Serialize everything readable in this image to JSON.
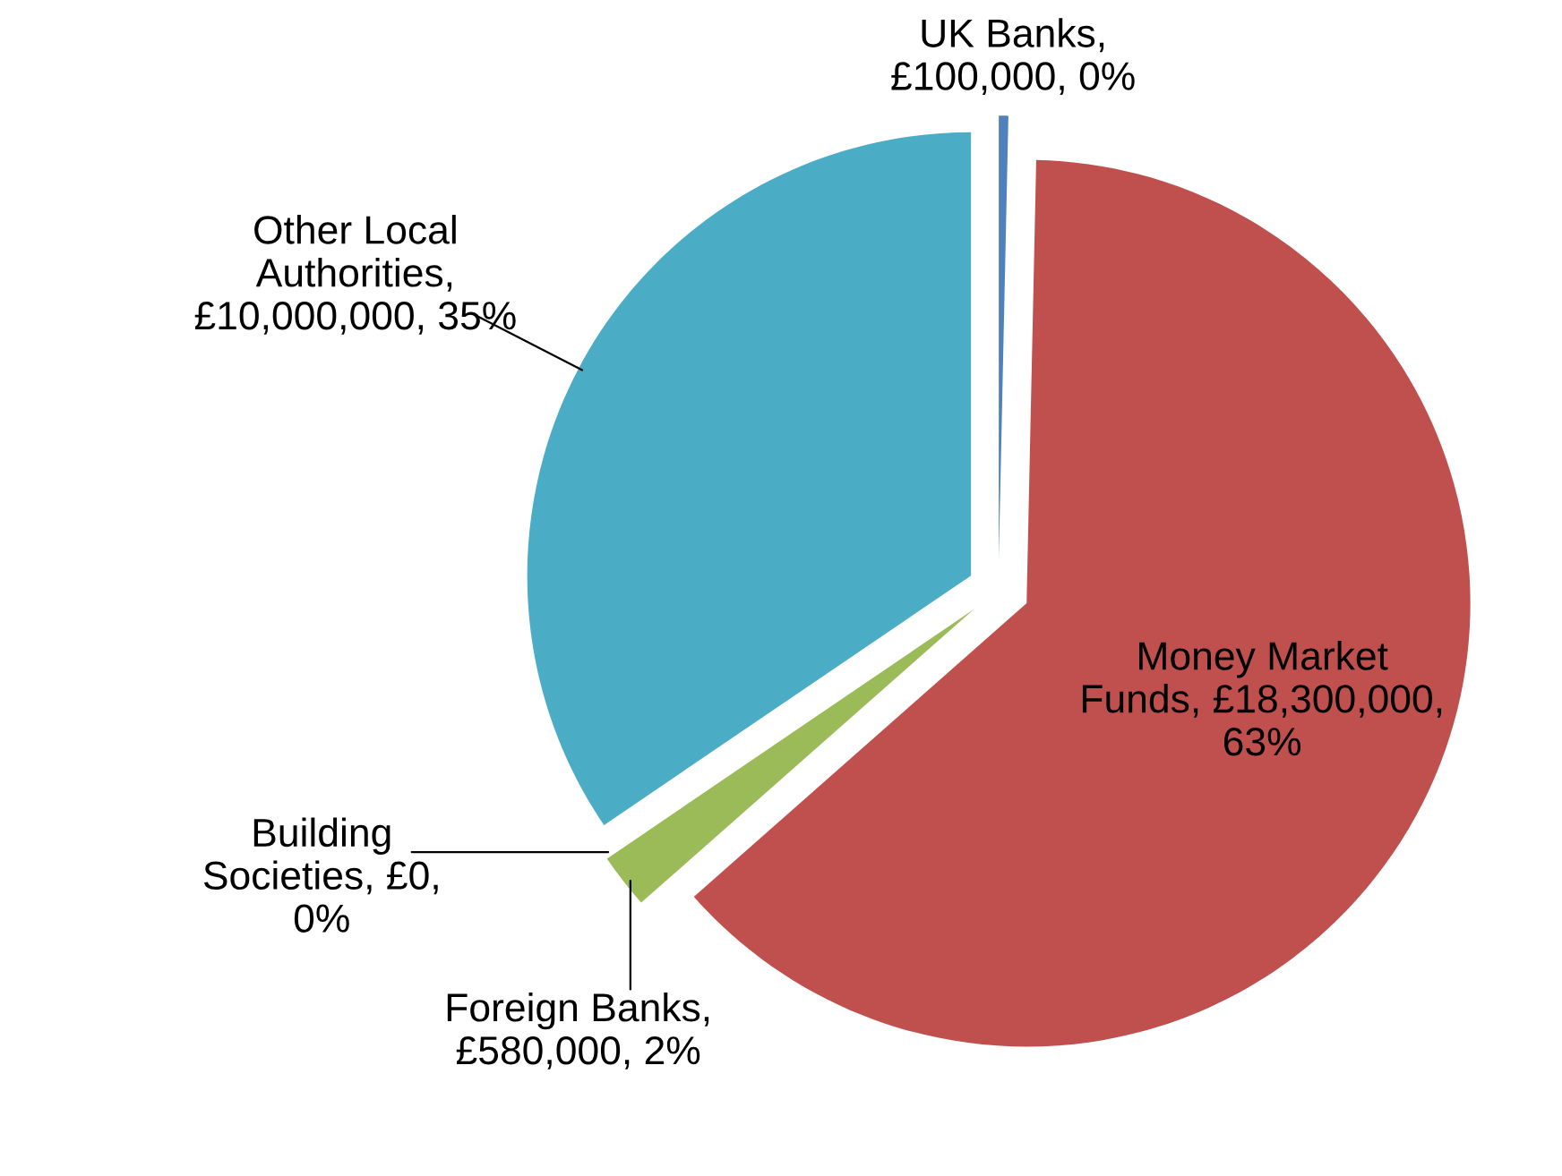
{
  "chart_data": {
    "type": "pie",
    "categories": [
      "UK Banks",
      "Money Market Funds",
      "Foreign Banks",
      "Building Societies",
      "Other Local Authorities"
    ],
    "values": [
      100000,
      18300000,
      580000,
      0,
      10000000
    ],
    "colors": [
      "#4f81bd",
      "#c0504d",
      "#9bbb59",
      "#8064a2",
      "#4bacc6"
    ],
    "value_labels": [
      ", £100,000, 0%",
      ", £18,300,000, 63%",
      ", £580,000, 2%",
      ", £0, 0%",
      ", £10,000,000, 35%"
    ]
  }
}
